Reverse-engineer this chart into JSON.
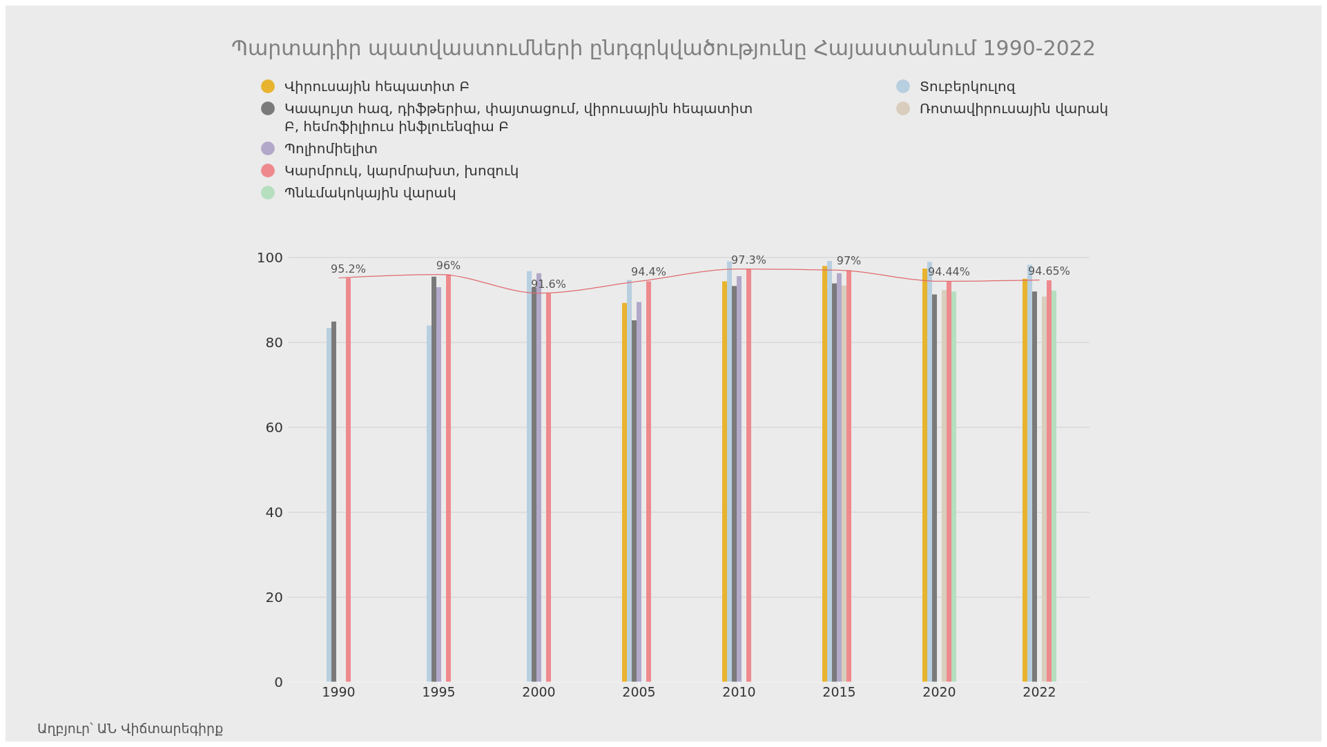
{
  "chart_data": {
    "type": "bar",
    "title": "Պարտադիր պատվաստումների ընդգրկվածությունը Հայաստանում 1990-2022",
    "annotations": [
      "Աղբյուր՝ ԱՆ Վիճտարեգիրք"
    ],
    "categories": [
      "1990",
      "1995",
      "2000",
      "2005",
      "2010",
      "2015",
      "2020",
      "2022"
    ],
    "series": [
      {
        "name": "Վիրուսային հեպատիտ Բ",
        "color": "#e8b32e",
        "values": [
          null,
          null,
          null,
          89.3,
          94.4,
          98.0,
          97.4,
          95.0
        ]
      },
      {
        "name": "Տուբերկուլոզ",
        "color": "#b8cfe0",
        "values": [
          83.4,
          84.0,
          96.8,
          94.7,
          99.1,
          99.2,
          99.0,
          98.3
        ]
      },
      {
        "name": "Կապույտ հազ, դիֆթերիա, փայտացում, վիրուսային հեպատիտ Բ, հեմոֆիլիուս ինֆլուենզիա Բ",
        "color": "#7a7a7a",
        "values": [
          84.9,
          95.5,
          92.9,
          85.2,
          93.3,
          93.9,
          91.3,
          92.0
        ]
      },
      {
        "name": "Պոլիոմիելիտ",
        "color": "#b2a8c9",
        "values": [
          null,
          93.0,
          96.3,
          89.5,
          95.6,
          96.3,
          null,
          null
        ]
      },
      {
        "name": "Ռոտավիրուսային վարակ",
        "color": "#d9cdbd",
        "values": [
          null,
          null,
          null,
          null,
          null,
          93.4,
          92.3,
          90.8
        ]
      },
      {
        "name": "Կարմրուկ, կարմրախտ, խոզուկ",
        "color": "#ee8a8d",
        "values": [
          95.2,
          96,
          91.6,
          94.4,
          97.3,
          97,
          94.44,
          94.65
        ],
        "value_labels": [
          "95.2%",
          "96%",
          "91.6%",
          "94.4%",
          "97.3%",
          "97%",
          "94.44%",
          "94.65%"
        ]
      },
      {
        "name": "Պնևմակոկային վարակ",
        "color": "#b5dfbf",
        "values": [
          null,
          null,
          null,
          null,
          null,
          null,
          92.0,
          92.2
        ]
      },
      {
        "type": "line",
        "color": "#e06a6e",
        "values": [
          95.2,
          96,
          91.6,
          94.4,
          97.3,
          97,
          94.4,
          94.7
        ]
      }
    ],
    "ylim": [
      0,
      100
    ],
    "yticks": [
      0,
      20,
      40,
      60,
      80,
      100
    ],
    "grid": "y",
    "legend": "top left",
    "marker": "none"
  }
}
